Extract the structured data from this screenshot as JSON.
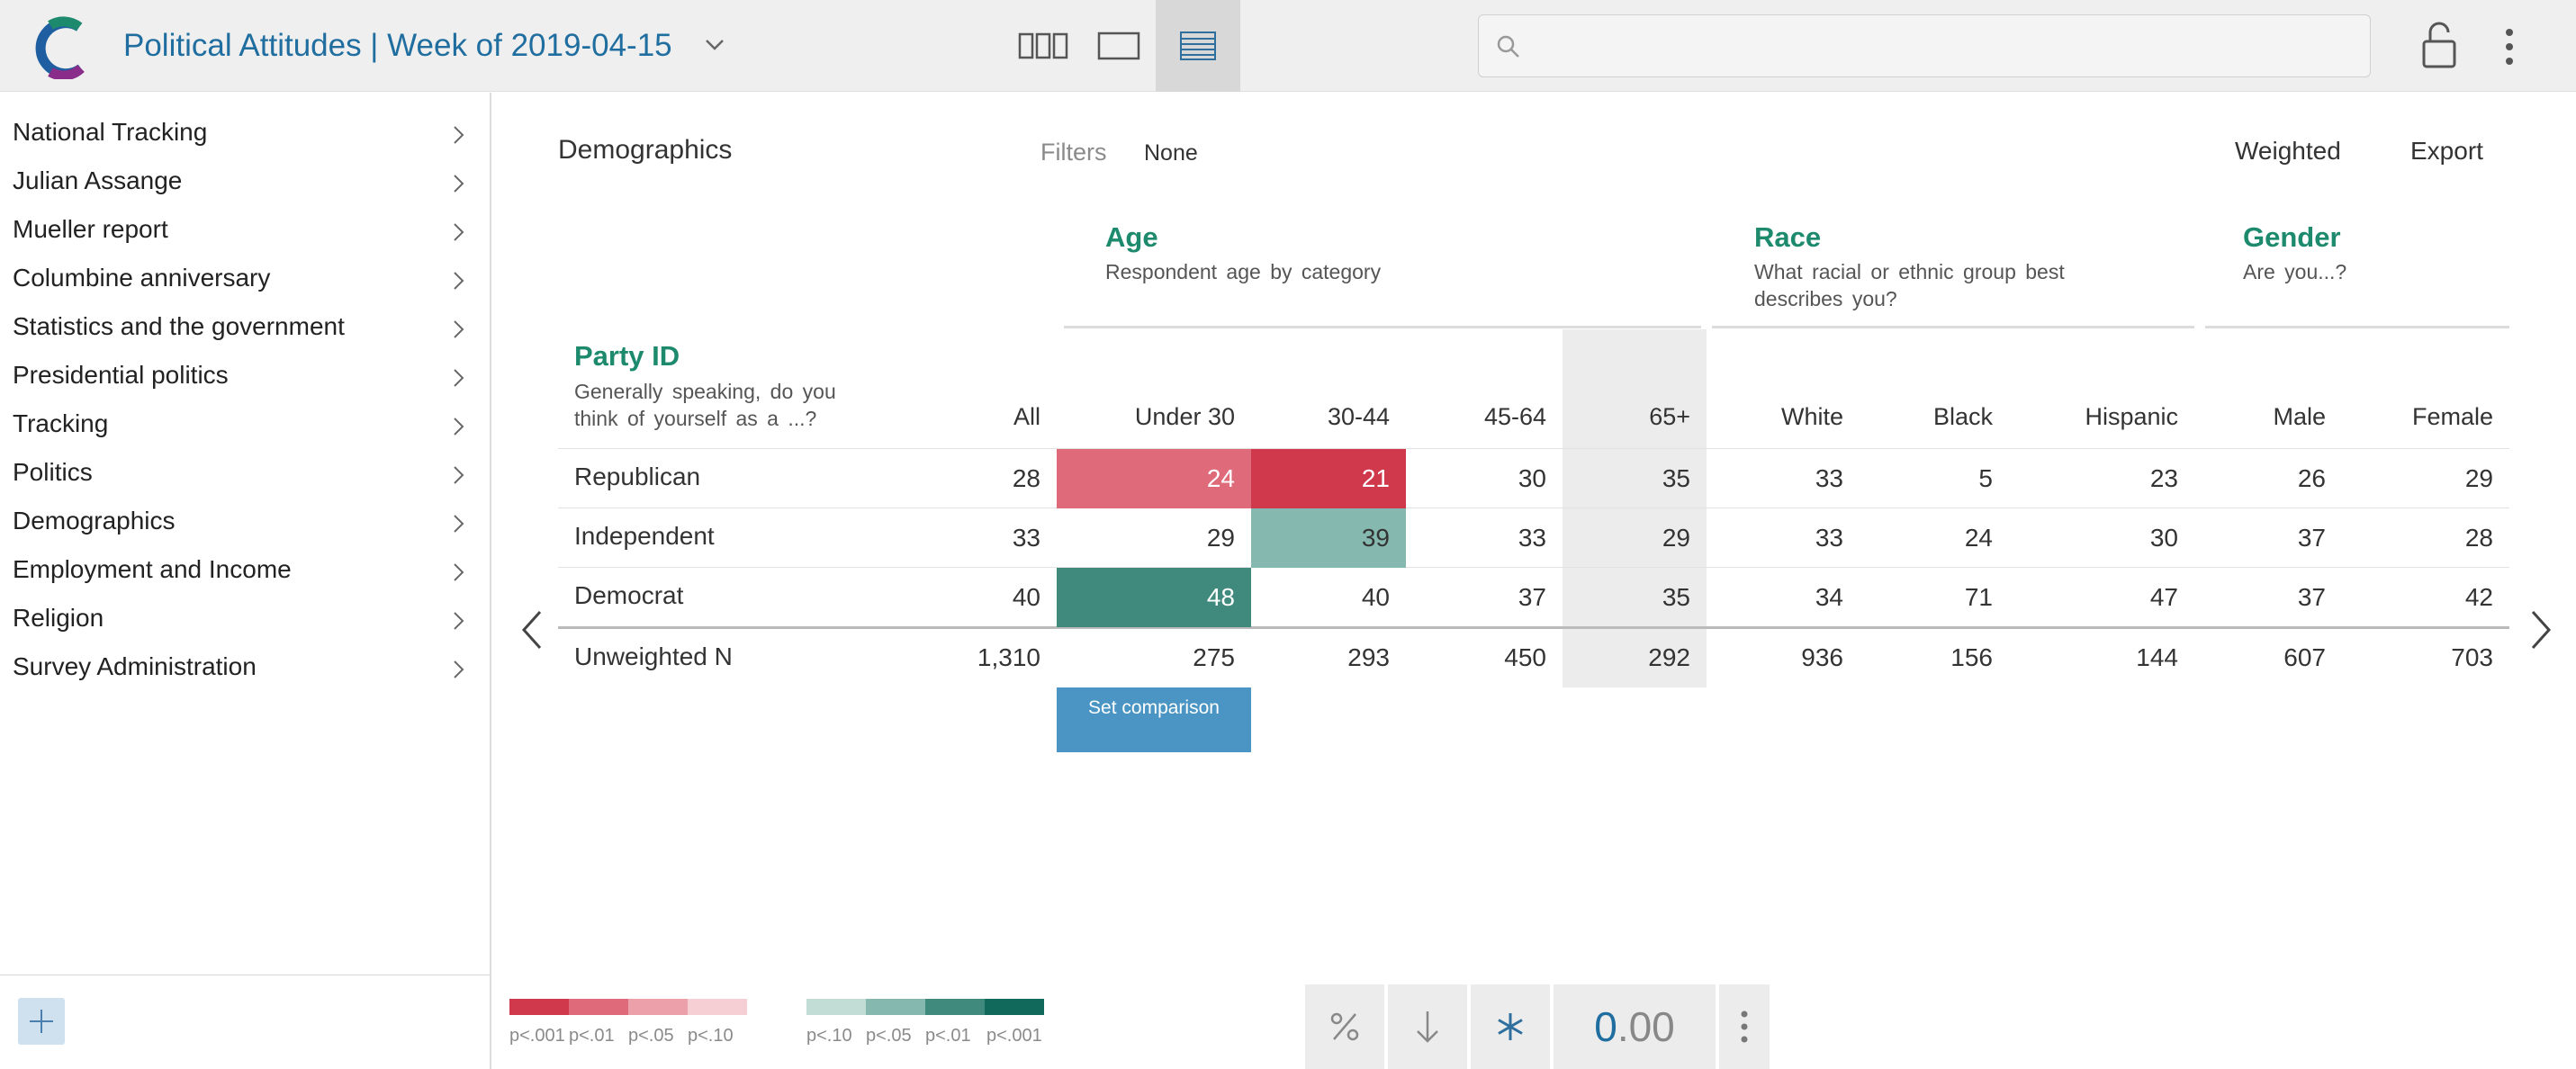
{
  "header": {
    "title": "Political Attitudes | Week of 2019-04-15",
    "search_placeholder": "",
    "view_buttons": [
      "columns-view-icon",
      "single-view-icon",
      "table-view-icon"
    ],
    "active_view": "table-view-icon"
  },
  "sidebar": {
    "items": [
      {
        "label": "National Tracking"
      },
      {
        "label": "Julian Assange"
      },
      {
        "label": "Mueller report"
      },
      {
        "label": "Columbine anniversary"
      },
      {
        "label": "Statistics and the government"
      },
      {
        "label": "Presidential politics"
      },
      {
        "label": "Tracking"
      },
      {
        "label": "Politics"
      },
      {
        "label": "Demographics"
      },
      {
        "label": "Employment and Income"
      },
      {
        "label": "Religion"
      },
      {
        "label": "Survey Administration"
      }
    ],
    "add_icon": "plus-icon"
  },
  "main": {
    "title": "Demographics",
    "filters_label": "Filters",
    "filters_value": "None",
    "weighted_label": "Weighted",
    "export_label": "Export",
    "row_variable": {
      "title": "Party ID",
      "description": "Generally speaking, do you think of yourself as a ...?"
    },
    "groups": [
      {
        "title": "Age",
        "description": "Respondent age by category"
      },
      {
        "title": "Race",
        "description": "What racial or ethnic group best describes you?"
      },
      {
        "title": "Gender",
        "description": "Are you...?"
      }
    ],
    "columns": [
      "All",
      "Under 30",
      "30-44",
      "45-64",
      "65+",
      "White",
      "Black",
      "Hispanic",
      "Male",
      "Female"
    ],
    "rows": [
      {
        "label": "Republican",
        "values": [
          "28",
          "24",
          "21",
          "30",
          "35",
          "33",
          "5",
          "23",
          "26",
          "29"
        ]
      },
      {
        "label": "Independent",
        "values": [
          "33",
          "29",
          "39",
          "33",
          "29",
          "33",
          "24",
          "30",
          "37",
          "28"
        ]
      },
      {
        "label": "Democrat",
        "values": [
          "40",
          "48",
          "40",
          "37",
          "35",
          "34",
          "71",
          "47",
          "37",
          "42"
        ]
      }
    ],
    "totals": {
      "label": "Unweighted N",
      "values": [
        "1,310",
        "275",
        "293",
        "450",
        "292",
        "936",
        "156",
        "144",
        "607",
        "703"
      ]
    },
    "set_comparison_label": "Set comparison",
    "comparison_column": "Under 30"
  },
  "legend": {
    "negative": {
      "colors": [
        "#d0394c",
        "#df6b7a",
        "#eba0aa",
        "#f5cfd4"
      ],
      "labels": [
        "p<.001",
        "p<.01",
        "p<.05",
        "p<.10"
      ]
    },
    "positive": {
      "colors": [
        "#c2dcd6",
        "#85b8ae",
        "#3f8a7d",
        "#11695b"
      ],
      "labels": [
        "p<.10",
        "p<.05",
        "p<.01",
        "p<.001"
      ]
    }
  },
  "toolbar": {
    "percent_icon": "percent-icon",
    "sort_icon": "sort-down-icon",
    "significance_icon": "asterisk-icon",
    "decimals_zero": "0",
    "decimals_rest": ".00",
    "more_icon": "more-vertical-icon"
  },
  "colors": {
    "accent_blue": "#1f6e9f",
    "group_green": "#1d8a6d",
    "sig_neg_strong": "#d0394c",
    "sig_neg_medium": "#df6b7a",
    "sig_pos_light": "#85b8ae",
    "sig_pos_strong": "#3f8a7d",
    "button_blue": "#4a95c4"
  }
}
